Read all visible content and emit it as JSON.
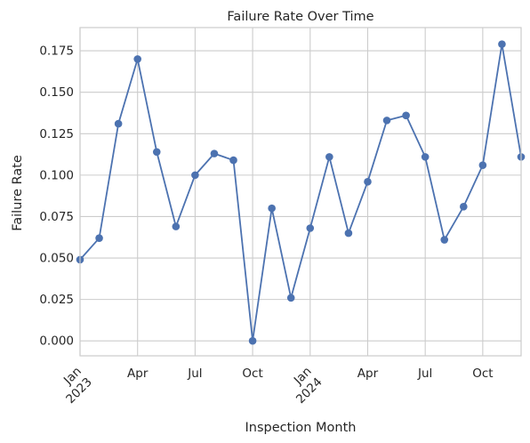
{
  "chart_data": {
    "type": "line",
    "title": "Failure Rate Over Time",
    "xlabel": "Inspection Month",
    "ylabel": "Failure Rate",
    "x": [
      "2023-01",
      "2023-02",
      "2023-03",
      "2023-04",
      "2023-05",
      "2023-06",
      "2023-07",
      "2023-08",
      "2023-09",
      "2023-10",
      "2023-11",
      "2023-12",
      "2024-01",
      "2024-02",
      "2024-03",
      "2024-04",
      "2024-05",
      "2024-06",
      "2024-07",
      "2024-08",
      "2024-09",
      "2024-10",
      "2024-11",
      "2024-12"
    ],
    "series": [
      {
        "values": [
          0.049,
          0.062,
          0.131,
          0.17,
          0.114,
          0.069,
          0.1,
          0.113,
          0.109,
          0.0,
          0.08,
          0.026,
          0.068,
          0.111,
          0.065,
          0.096,
          0.133,
          0.136,
          0.111,
          0.061,
          0.081,
          0.106,
          0.179,
          0.111
        ],
        "color": "#4c72b0"
      }
    ],
    "ylim": [
      -0.009,
      0.189
    ],
    "yticks": [
      "0.000",
      "0.025",
      "0.050",
      "0.075",
      "0.100",
      "0.125",
      "0.150",
      "0.175"
    ],
    "xticks": [
      {
        "month": "2023-01",
        "label": "Jan",
        "year": "2023"
      },
      {
        "month": "2023-04",
        "label": "Apr"
      },
      {
        "month": "2023-07",
        "label": "Jul"
      },
      {
        "month": "2023-10",
        "label": "Oct"
      },
      {
        "month": "2024-01",
        "label": "Jan",
        "year": "2024"
      },
      {
        "month": "2024-04",
        "label": "Apr"
      },
      {
        "month": "2024-07",
        "label": "Jul"
      },
      {
        "month": "2024-10",
        "label": "Oct"
      }
    ],
    "grid": true,
    "grid_color": "#cccccc",
    "spine_color": "#cccccc"
  }
}
